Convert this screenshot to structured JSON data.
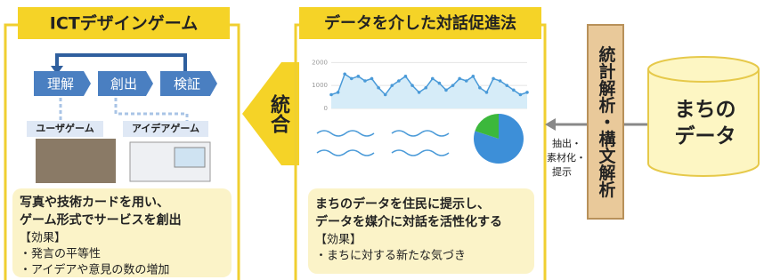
{
  "left_panel": {
    "title": "ICTデザインゲーム",
    "flow": [
      "理解",
      "創出",
      "検証"
    ],
    "games": [
      "ユーザゲーム",
      "アイデアゲーム"
    ],
    "description": [
      "写真や技術カードを用い、",
      "ゲーム形式でサービスを創出"
    ],
    "effect_heading": "【効果】",
    "effects": [
      "・発言の平等性",
      "・アイデアや意見の数の増加"
    ]
  },
  "integration_arrow": "統合",
  "middle_panel": {
    "title": "データを介した対話促進法",
    "mini_chart": {
      "type": "line",
      "ylim": [
        0,
        2400
      ],
      "yticks": [
        0,
        1000,
        2000
      ],
      "values": [
        600,
        700,
        1500,
        1300,
        1400,
        1200,
        1300,
        900,
        600,
        1000,
        1200,
        1400,
        1000,
        700,
        900,
        1300,
        1100,
        800,
        1000,
        1300,
        1200,
        1400,
        900,
        700,
        1300,
        1200,
        1000,
        800,
        600,
        700
      ]
    },
    "mini_pie": {
      "type": "pie",
      "values": [
        80,
        20
      ],
      "colors": [
        "#3d8fd8",
        "#3cb83c"
      ]
    },
    "description": [
      "まちのデータを住民に提示し、",
      "データを媒介に対話を活性化する"
    ],
    "effect_heading": "【効果】",
    "effects": [
      "・まちに対する新たな気づき"
    ]
  },
  "extraction_label": [
    "抽出・",
    "素材化・",
    "提示"
  ],
  "analysis_box": "統計解析・構文解析",
  "data_store": [
    "まちの",
    "データ"
  ]
}
